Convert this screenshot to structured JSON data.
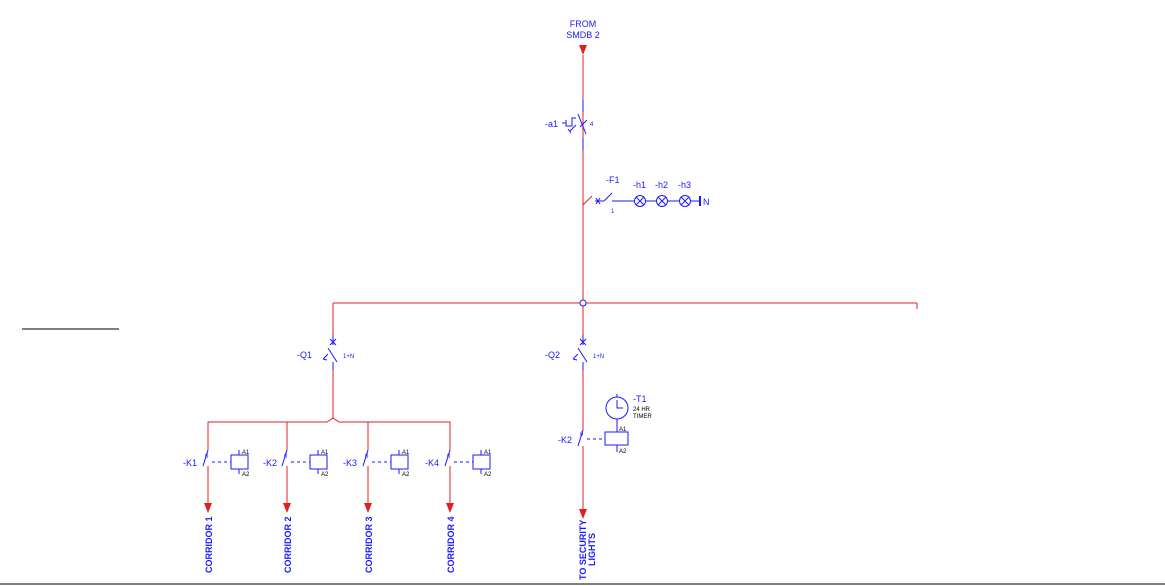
{
  "source": {
    "line1": "FROM",
    "line2": "SMDB 2"
  },
  "main_isolator": {
    "tag": "-a1",
    "poles": "4"
  },
  "indication": {
    "fuse": {
      "tag": "-F1",
      "poles": "1"
    },
    "lamps": [
      {
        "tag": "-h1"
      },
      {
        "tag": "-h2"
      },
      {
        "tag": "-h3"
      }
    ],
    "neutral": "N"
  },
  "breakers": [
    {
      "tag": "-Q1",
      "poles": "1+N"
    },
    {
      "tag": "-Q2",
      "poles": "1+N"
    }
  ],
  "timer": {
    "tag": "-T1",
    "line1": "24 HR",
    "line2": "TIMER"
  },
  "coil_terminals": {
    "a1": "A1",
    "a2": "A2"
  },
  "contactors": [
    {
      "tag": "-K1",
      "contact_no": "0"
    },
    {
      "tag": "-K2",
      "contact_no": "0"
    },
    {
      "tag": "-K3",
      "contact_no": "0"
    },
    {
      "tag": "-K4",
      "contact_no": "0"
    },
    {
      "tag": "-K2",
      "contact_no": "0"
    }
  ],
  "outgoing": [
    {
      "label": "CORRIDOR 1"
    },
    {
      "label": "CORRIDOR 2"
    },
    {
      "label": "CORRIDOR 3"
    },
    {
      "label": "CORRIDOR 4"
    },
    {
      "line1": "TO SECURITY",
      "line2": "LIGHTS"
    }
  ],
  "colors": {
    "power": "#e02020",
    "symbol": "#1a1aff",
    "frame": "#000000"
  }
}
